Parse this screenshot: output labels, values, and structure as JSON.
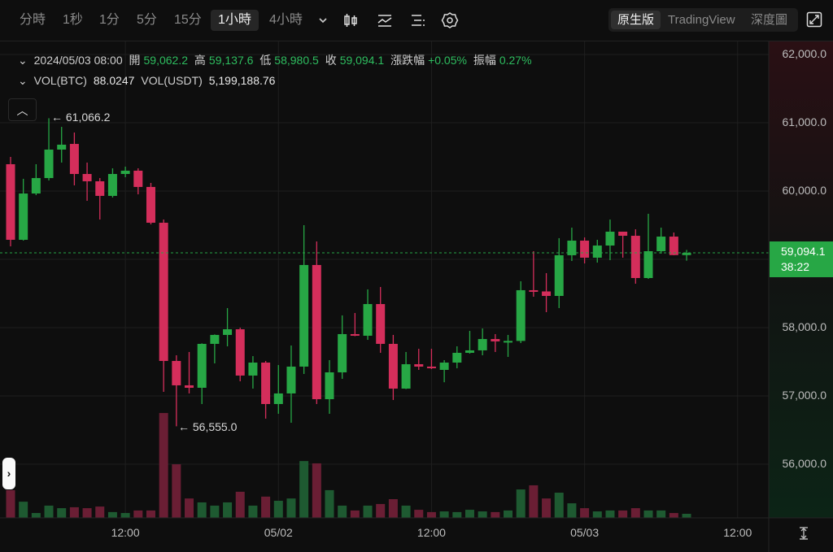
{
  "toolbar": {
    "intervals": [
      "分時",
      "1秒",
      "1分",
      "5分",
      "15分",
      "1小時",
      "4小時"
    ],
    "active_interval": "1小時",
    "views": [
      "原生版",
      "TradingView",
      "深度圖"
    ],
    "active_view": "原生版"
  },
  "info": {
    "datetime": "2024/05/03 08:00",
    "open_label": "開",
    "open": "59,062.2",
    "high_label": "高",
    "high": "59,137.6",
    "low_label": "低",
    "low": "58,980.5",
    "close_label": "收",
    "close": "59,094.1",
    "change_label": "漲跌幅",
    "change": "+0.05%",
    "amplitude_label": "振幅",
    "amplitude": "0.27%",
    "vol_btc_label": "VOL(BTC)",
    "vol_btc": "88.0247",
    "vol_usdt_label": "VOL(USDT)",
    "vol_usdt": "5,199,188.76"
  },
  "current_price": {
    "price": "59,094.1",
    "countdown": "38:22"
  },
  "annotations": {
    "high": "← 61,066.2",
    "low": "← 56,555.0"
  },
  "colors": {
    "up": "#27a745",
    "down": "#d42e5b",
    "up_vol": "#1e5a31",
    "down_vol": "#6a1e34",
    "grid": "#1f1f1f"
  },
  "chart_data": {
    "type": "candlestick",
    "symbol_interval": "1h",
    "first_candle": "2024/05/01 03:00",
    "last_candle": "2024/05/03 08:00",
    "y_ticks": [
      "62,000.0",
      "61,000.0",
      "60,000.0",
      "58,000.0",
      "57,000.0",
      "56,000.0"
    ],
    "y_tick_values": [
      62000,
      61000,
      60000,
      58000,
      57000,
      56000
    ],
    "x_ticks": [
      "12:00",
      "05/02",
      "12:00",
      "05/03",
      "12:00"
    ],
    "x_tick_candle_index": [
      9,
      21,
      33,
      45,
      57
    ],
    "ylim": [
      55200,
      62000
    ],
    "ohlc": [
      [
        60393,
        60500,
        59190,
        59286
      ],
      [
        59286,
        60179,
        59274,
        59964
      ],
      [
        59964,
        60393,
        59940,
        60190
      ],
      [
        60190,
        61066.2,
        60155,
        60607
      ],
      [
        60607,
        60940,
        60417,
        60679
      ],
      [
        60690,
        60857,
        60083,
        60250
      ],
      [
        60250,
        60417,
        59857,
        60143
      ],
      [
        60143,
        60190,
        59583,
        59929
      ],
      [
        59929,
        60333,
        59905,
        60250
      ],
      [
        60250,
        60357,
        60202,
        60298
      ],
      [
        60298,
        60333,
        59952,
        60060
      ],
      [
        60060,
        60119,
        59512,
        59536
      ],
      [
        59536,
        59583,
        57060,
        57512
      ],
      [
        57512,
        57595,
        56555,
        57155
      ],
      [
        57155,
        57643,
        57036,
        57119
      ],
      [
        57119,
        57770,
        56881,
        57762
      ],
      [
        57762,
        57900,
        57476,
        57893
      ],
      [
        57893,
        58286,
        57726,
        57976
      ],
      [
        57976,
        58000,
        57214,
        57298
      ],
      [
        57298,
        57583,
        57107,
        57488
      ],
      [
        57488,
        57512,
        56667,
        56881
      ],
      [
        56881,
        57452,
        56738,
        57036
      ],
      [
        57036,
        57738,
        56607,
        57429
      ],
      [
        57429,
        59500,
        57321,
        58917
      ],
      [
        58917,
        59262,
        56881,
        56952
      ],
      [
        56952,
        57524,
        56738,
        57345
      ],
      [
        57345,
        58179,
        57250,
        57905
      ],
      [
        57905,
        58214,
        57875,
        57881
      ],
      [
        57881,
        58560,
        57821,
        58345
      ],
      [
        58345,
        58595,
        57631,
        57762
      ],
      [
        57762,
        57893,
        56940,
        57107
      ],
      [
        57107,
        57643,
        57100,
        57464
      ],
      [
        57464,
        57690,
        57381,
        57429
      ],
      [
        57429,
        57690,
        57393,
        57410
      ],
      [
        57381,
        57524,
        57200,
        57488
      ],
      [
        57488,
        57726,
        57405,
        57631
      ],
      [
        57631,
        57952,
        57619,
        57667
      ],
      [
        57667,
        57988,
        57595,
        57833
      ],
      [
        57833,
        57905,
        57643,
        57798
      ],
      [
        57798,
        57893,
        57571,
        57805
      ],
      [
        57805,
        58679,
        57774,
        58548
      ],
      [
        58548,
        59119,
        58452,
        58530
      ],
      [
        58530,
        58798,
        58226,
        58464
      ],
      [
        58464,
        59310,
        58286,
        59060
      ],
      [
        59060,
        59464,
        58976,
        59274
      ],
      [
        59274,
        59321,
        58940,
        59024
      ],
      [
        59024,
        59286,
        58952,
        59202
      ],
      [
        59202,
        59583,
        58988,
        59405
      ],
      [
        59405,
        59405,
        59024,
        59345
      ],
      [
        59345,
        59440,
        58643,
        58726
      ],
      [
        58726,
        59667,
        58714,
        59119
      ],
      [
        59119,
        59464,
        59083,
        59333
      ],
      [
        59333,
        59393,
        59060,
        59062.2
      ],
      [
        59062.2,
        59137.6,
        58980.5,
        59094.1
      ]
    ],
    "volume_btc": [
      600,
      350,
      105,
      265,
      210,
      230,
      210,
      245,
      125,
      105,
      160,
      160,
      2270,
      1160,
      420,
      335,
      265,
      335,
      565,
      265,
      460,
      370,
      420,
      1230,
      1180,
      600,
      265,
      160,
      265,
      300,
      405,
      265,
      175,
      125,
      140,
      125,
      175,
      140,
      125,
      160,
      615,
      705,
      420,
      545,
      315,
      210,
      140,
      160,
      160,
      210,
      160,
      160,
      105,
      88.0247
    ]
  }
}
